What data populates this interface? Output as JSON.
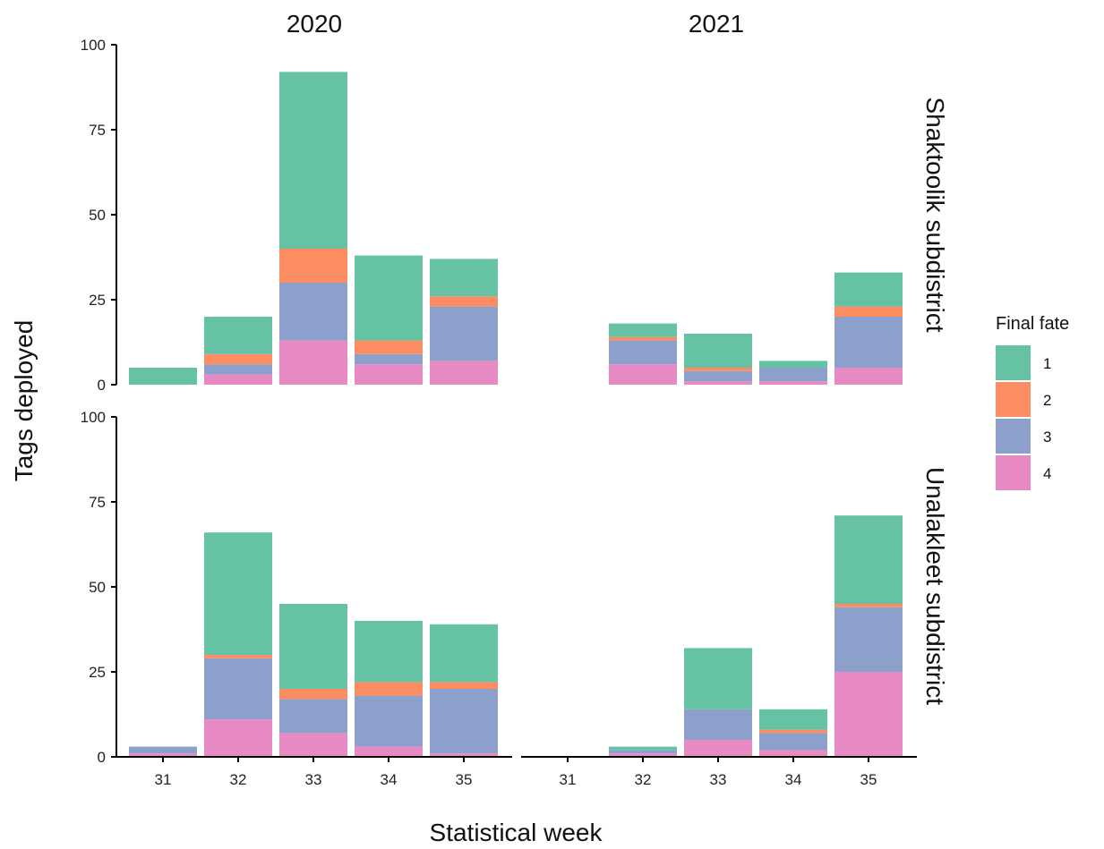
{
  "chart_data": {
    "type": "bar",
    "stacked": true,
    "xlabel": "Statistical week",
    "ylabel": "Tags deployed",
    "ylim": [
      0,
      100
    ],
    "yticks": [
      0,
      25,
      50,
      75,
      100
    ],
    "categories": [
      "31",
      "32",
      "33",
      "34",
      "35"
    ],
    "columns": [
      "2020",
      "2021"
    ],
    "rows": [
      "Shaktoolik subdistrict",
      "Unalakleet subdistrict"
    ],
    "legend": {
      "title": "Final fate",
      "position": "right",
      "entries": [
        "1",
        "2",
        "3",
        "4"
      ]
    },
    "colors": {
      "1": "#66c2a5",
      "2": "#fc8d62",
      "3": "#8da0cb",
      "4": "#e78ac3"
    },
    "stack_order_bottom_to_top": [
      "4",
      "3",
      "2",
      "1"
    ],
    "panels": [
      {
        "column": "2020",
        "row": "Shaktoolik subdistrict",
        "series": [
          {
            "name": "1",
            "values": [
              5,
              11,
              52,
              25,
              11
            ]
          },
          {
            "name": "2",
            "values": [
              0,
              3,
              10,
              4,
              3
            ]
          },
          {
            "name": "3",
            "values": [
              0,
              3,
              17,
              3,
              16
            ]
          },
          {
            "name": "4",
            "values": [
              0,
              3,
              13,
              6,
              7
            ]
          }
        ]
      },
      {
        "column": "2021",
        "row": "Shaktoolik subdistrict",
        "series": [
          {
            "name": "1",
            "values": [
              0,
              4,
              10,
              2,
              10
            ]
          },
          {
            "name": "2",
            "values": [
              0,
              1,
              1,
              0,
              3
            ]
          },
          {
            "name": "3",
            "values": [
              0,
              7,
              3,
              4,
              15
            ]
          },
          {
            "name": "4",
            "values": [
              0,
              6,
              1,
              1,
              5
            ]
          }
        ]
      },
      {
        "column": "2020",
        "row": "Unalakleet subdistrict",
        "series": [
          {
            "name": "1",
            "values": [
              0,
              36,
              25,
              18,
              17
            ]
          },
          {
            "name": "2",
            "values": [
              0,
              1,
              3,
              4,
              2
            ]
          },
          {
            "name": "3",
            "values": [
              2,
              18,
              10,
              15,
              19
            ]
          },
          {
            "name": "4",
            "values": [
              1,
              11,
              7,
              3,
              1
            ]
          }
        ]
      },
      {
        "column": "2021",
        "row": "Unalakleet subdistrict",
        "series": [
          {
            "name": "1",
            "values": [
              0,
              1,
              18,
              6,
              26
            ]
          },
          {
            "name": "2",
            "values": [
              0,
              0,
              0,
              1,
              1
            ]
          },
          {
            "name": "3",
            "values": [
              0,
              1,
              9,
              5,
              19
            ]
          },
          {
            "name": "4",
            "values": [
              0,
              1,
              5,
              2,
              25
            ]
          }
        ]
      }
    ]
  }
}
